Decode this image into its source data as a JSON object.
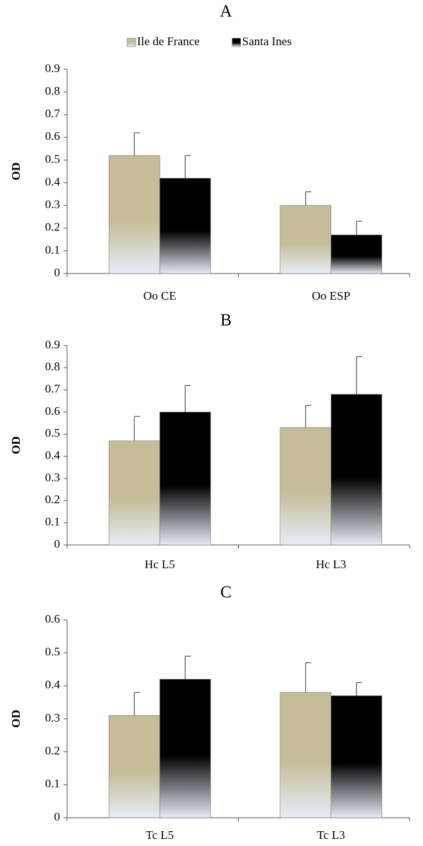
{
  "chart_data": [
    {
      "type": "bar",
      "title": "A",
      "y_label": "OD",
      "categories": [
        "Oo CE",
        "Oo ESP"
      ],
      "series": [
        {
          "name": "Ile de France",
          "color": "#c4bd97",
          "values": [
            0.52,
            0.3
          ],
          "errors": [
            0.1,
            0.06
          ]
        },
        {
          "name": "Santa Ines",
          "color": "#000000",
          "values": [
            0.42,
            0.17
          ],
          "errors": [
            0.1,
            0.06
          ]
        }
      ],
      "ylim": [
        0,
        0.9
      ],
      "yticks": [
        0,
        0.1,
        0.2,
        0.3,
        0.4,
        0.5,
        0.6,
        0.7,
        0.8,
        0.9
      ],
      "legend": "top"
    },
    {
      "type": "bar",
      "title": "B",
      "y_label": "OD",
      "categories": [
        "Hc L5",
        "Hc L3"
      ],
      "series": [
        {
          "color": "#c4bd97",
          "values": [
            0.47,
            0.53
          ],
          "errors": [
            0.11,
            0.1
          ]
        },
        {
          "color": "#000000",
          "values": [
            0.6,
            0.68
          ],
          "errors": [
            0.12,
            0.17
          ]
        }
      ],
      "ylim": [
        0,
        0.9
      ],
      "yticks": [
        0,
        0.1,
        0.2,
        0.3,
        0.4,
        0.5,
        0.6,
        0.7,
        0.8,
        0.9
      ]
    },
    {
      "type": "bar",
      "title": "C",
      "y_label": "OD",
      "categories": [
        "Tc L5",
        "Tc L3"
      ],
      "series": [
        {
          "color": "#c4bd97",
          "values": [
            0.31,
            0.38
          ],
          "errors": [
            0.07,
            0.09
          ]
        },
        {
          "color": "#000000",
          "values": [
            0.42,
            0.37
          ],
          "errors": [
            0.07,
            0.04
          ]
        }
      ],
      "ylim": [
        0,
        0.6
      ],
      "yticks": [
        0,
        0.1,
        0.2,
        0.3,
        0.4,
        0.5,
        0.6
      ]
    }
  ]
}
